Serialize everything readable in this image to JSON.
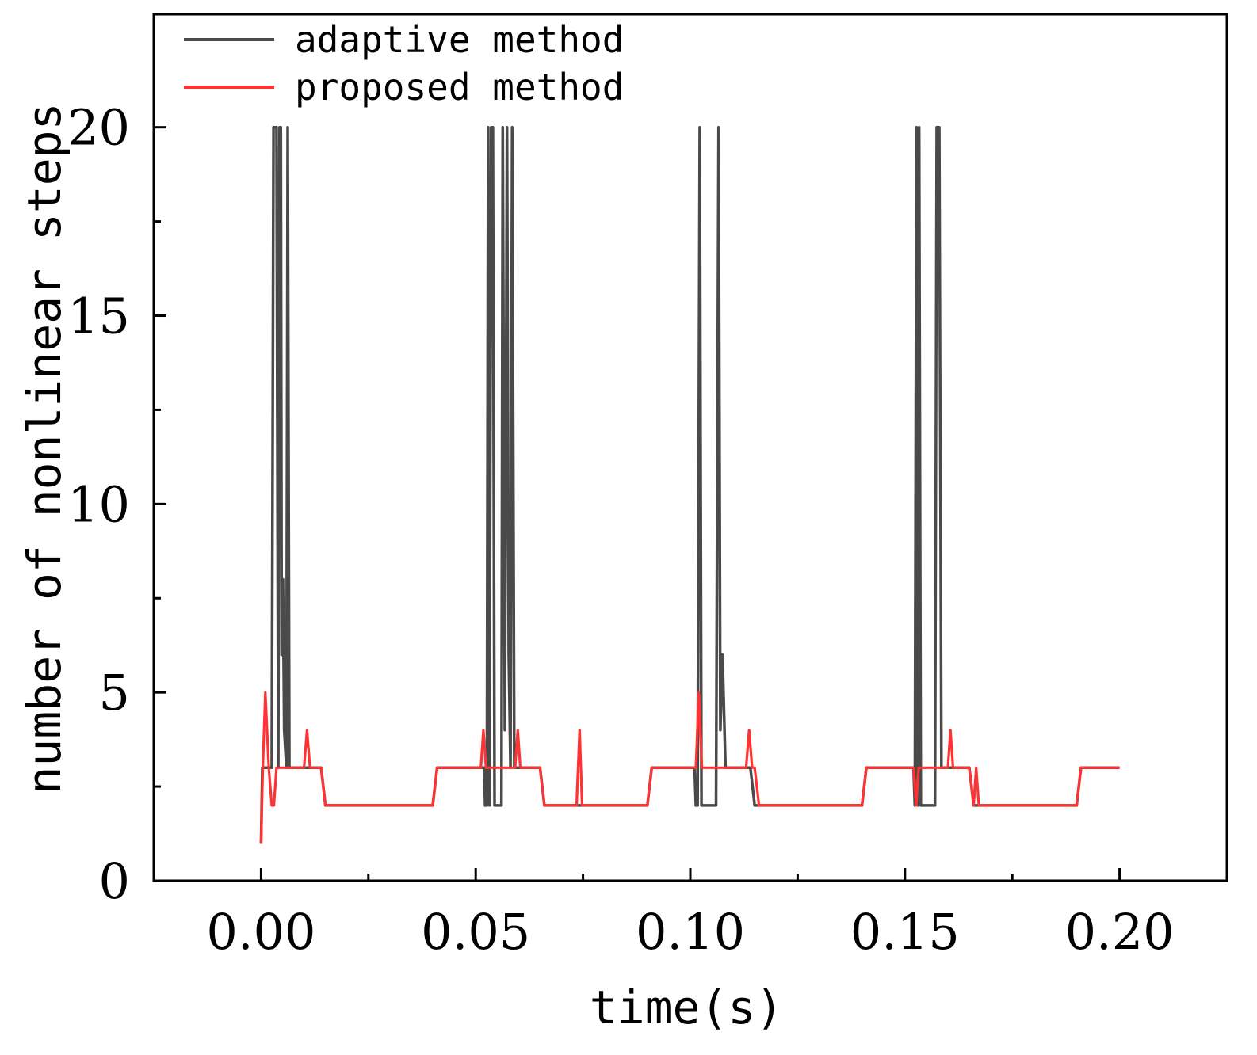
{
  "chart_data": {
    "type": "line",
    "xlabel": "time(s)",
    "ylabel": "number of nonlinear steps",
    "xlim": [
      -0.025,
      0.225
    ],
    "ylim": [
      0,
      23
    ],
    "xticks": [
      0.0,
      0.05,
      0.1,
      0.15,
      0.2
    ],
    "xtick_labels": [
      "0.00",
      "0.05",
      "0.10",
      "0.15",
      "0.20"
    ],
    "xtick_minor": [
      0.025,
      0.075,
      0.125,
      0.175
    ],
    "yticks": [
      0,
      5,
      10,
      15,
      20
    ],
    "ytick_labels": [
      "0",
      "5",
      "10",
      "15",
      "20"
    ],
    "ytick_minor": [
      2.5,
      7.5,
      12.5,
      17.5
    ],
    "legend_position": "top-left",
    "series": [
      {
        "name": "adaptive method",
        "color": "#4a4a4a",
        "points": [
          [
            0.0,
            1
          ],
          [
            0.0003,
            3
          ],
          [
            0.0025,
            3
          ],
          [
            0.0029,
            20
          ],
          [
            0.0036,
            20
          ],
          [
            0.004,
            3
          ],
          [
            0.0043,
            20
          ],
          [
            0.0046,
            20
          ],
          [
            0.0048,
            6
          ],
          [
            0.0051,
            8
          ],
          [
            0.0054,
            4
          ],
          [
            0.0059,
            3
          ],
          [
            0.0062,
            20
          ],
          [
            0.0066,
            3
          ],
          [
            0.0075,
            3
          ],
          [
            0.014,
            3
          ],
          [
            0.015,
            2
          ],
          [
            0.04,
            2
          ],
          [
            0.041,
            3
          ],
          [
            0.052,
            3
          ],
          [
            0.0522,
            2
          ],
          [
            0.0526,
            2
          ],
          [
            0.0529,
            20
          ],
          [
            0.0532,
            2
          ],
          [
            0.0536,
            20
          ],
          [
            0.054,
            20
          ],
          [
            0.0544,
            2
          ],
          [
            0.056,
            2
          ],
          [
            0.0563,
            20
          ],
          [
            0.0568,
            4
          ],
          [
            0.0573,
            20
          ],
          [
            0.0577,
            6
          ],
          [
            0.0581,
            3
          ],
          [
            0.0585,
            20
          ],
          [
            0.059,
            3
          ],
          [
            0.065,
            3
          ],
          [
            0.066,
            2
          ],
          [
            0.073,
            2
          ],
          [
            0.074,
            2
          ],
          [
            0.09,
            2
          ],
          [
            0.091,
            3
          ],
          [
            0.101,
            3
          ],
          [
            0.1013,
            2
          ],
          [
            0.1017,
            2
          ],
          [
            0.1022,
            20
          ],
          [
            0.1026,
            2
          ],
          [
            0.106,
            2
          ],
          [
            0.1066,
            20
          ],
          [
            0.107,
            4
          ],
          [
            0.1075,
            6
          ],
          [
            0.1082,
            3
          ],
          [
            0.114,
            3
          ],
          [
            0.115,
            2
          ],
          [
            0.14,
            2
          ],
          [
            0.141,
            3
          ],
          [
            0.152,
            3
          ],
          [
            0.1523,
            2
          ],
          [
            0.1527,
            20
          ],
          [
            0.153,
            2
          ],
          [
            0.1533,
            20
          ],
          [
            0.1537,
            2
          ],
          [
            0.157,
            2
          ],
          [
            0.1574,
            20
          ],
          [
            0.158,
            20
          ],
          [
            0.1585,
            3
          ],
          [
            0.165,
            3
          ],
          [
            0.166,
            2
          ],
          [
            0.19,
            2
          ],
          [
            0.191,
            3
          ],
          [
            0.2,
            3
          ]
        ]
      },
      {
        "name": "proposed method",
        "color": "#ff3333",
        "points": [
          [
            0.0,
            1
          ],
          [
            0.0004,
            3
          ],
          [
            0.001,
            5
          ],
          [
            0.0018,
            3
          ],
          [
            0.0025,
            2
          ],
          [
            0.003,
            2
          ],
          [
            0.0036,
            3
          ],
          [
            0.01,
            3
          ],
          [
            0.0107,
            4
          ],
          [
            0.0114,
            3
          ],
          [
            0.014,
            3
          ],
          [
            0.015,
            2
          ],
          [
            0.04,
            2
          ],
          [
            0.041,
            3
          ],
          [
            0.0512,
            3
          ],
          [
            0.0518,
            4
          ],
          [
            0.0524,
            3
          ],
          [
            0.0592,
            3
          ],
          [
            0.0598,
            4
          ],
          [
            0.0604,
            3
          ],
          [
            0.065,
            3
          ],
          [
            0.066,
            2
          ],
          [
            0.0735,
            2
          ],
          [
            0.0742,
            4
          ],
          [
            0.0748,
            2
          ],
          [
            0.09,
            2
          ],
          [
            0.091,
            3
          ],
          [
            0.1013,
            3
          ],
          [
            0.102,
            5
          ],
          [
            0.1027,
            3
          ],
          [
            0.113,
            3
          ],
          [
            0.1137,
            4
          ],
          [
            0.1144,
            3
          ],
          [
            0.115,
            3
          ],
          [
            0.116,
            2
          ],
          [
            0.14,
            2
          ],
          [
            0.141,
            3
          ],
          [
            0.152,
            3
          ],
          [
            0.1526,
            2
          ],
          [
            0.1532,
            3
          ],
          [
            0.16,
            3
          ],
          [
            0.1606,
            4
          ],
          [
            0.1612,
            3
          ],
          [
            0.165,
            3
          ],
          [
            0.166,
            2
          ],
          [
            0.1666,
            3
          ],
          [
            0.1672,
            2
          ],
          [
            0.19,
            2
          ],
          [
            0.191,
            3
          ],
          [
            0.2,
            3
          ]
        ]
      }
    ]
  }
}
